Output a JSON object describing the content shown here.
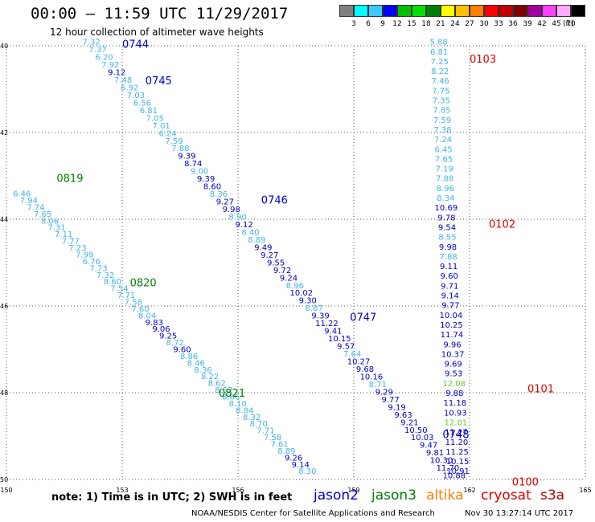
{
  "header": {
    "title": "00:00 – 11:59 UTC 11/29/2017",
    "subtitle": "12 hour collection of altimeter wave heights"
  },
  "legend": {
    "unit": "(ft)",
    "items": [
      {
        "color": "#808080",
        "label": "3"
      },
      {
        "color": "#00ffff",
        "label": "6"
      },
      {
        "color": "#3fc8ff",
        "label": "9"
      },
      {
        "color": "#0000ff",
        "label": "12"
      },
      {
        "color": "#00c000",
        "label": "15"
      },
      {
        "color": "#00e000",
        "label": "18"
      },
      {
        "color": "#008000",
        "label": "21"
      },
      {
        "color": "#ffff00",
        "label": "24"
      },
      {
        "color": "#ffc000",
        "label": "27"
      },
      {
        "color": "#ff8000",
        "label": "30"
      },
      {
        "color": "#ff0000",
        "label": "33"
      },
      {
        "color": "#c00000",
        "label": "36"
      },
      {
        "color": "#800000",
        "label": "39"
      },
      {
        "color": "#a000a0",
        "label": "42"
      },
      {
        "color": "#ff40ff",
        "label": "45"
      },
      {
        "color": "#ffaaff",
        "label": "70"
      },
      {
        "color": "#000000",
        "label": ""
      }
    ]
  },
  "axes": {
    "lat_labels": [
      "40",
      "42",
      "44",
      "46",
      "48",
      "50"
    ],
    "lon_labels": [
      "150",
      "153",
      "156",
      "159",
      "162",
      "165"
    ]
  },
  "colors": {
    "dark": "#0000c8",
    "light": "#3fb4e8",
    "green": "#008000",
    "red": "#e00000",
    "lime": "#66cc33"
  },
  "tracks": [
    {
      "id": "t1",
      "lon0": 152.2,
      "lat0": 39.9,
      "lon1": 161.6,
      "lat1": 49.9,
      "values": [
        "7.32",
        "7.37",
        "6.20",
        "7.92",
        "9.12",
        "7.48",
        "6.92",
        "7.03",
        "6.56",
        "6.81",
        "7.05",
        "7.01",
        "6.24",
        "7.59",
        "7.88",
        "9.39",
        "8.74",
        "9.00",
        "9.39",
        "8.60",
        "8.36",
        "9.27",
        "9.98",
        "8.90",
        "9.12",
        "8.40",
        "8.89",
        "9.49",
        "9.27",
        "9.55",
        "9.72",
        "9.24",
        "8.96",
        "10.02",
        "9.30",
        "8.87",
        "9.39",
        "11.22",
        "9.41",
        "10.15",
        "9.57",
        "7.64",
        "10.27",
        "9.68",
        "10.16",
        "8.71",
        "9.29",
        "9.77",
        "9.19",
        "9.63",
        "9.21",
        "10.50",
        "10.03",
        "9.47",
        "9.81",
        "10.30",
        "11.70",
        "10.88"
      ],
      "shades": [
        "L",
        "L",
        "L",
        "L",
        "D",
        "L",
        "L",
        "L",
        "L",
        "L",
        "L",
        "L",
        "L",
        "L",
        "L",
        "D",
        "D",
        "L",
        "D",
        "D",
        "L",
        "D",
        "D",
        "L",
        "D",
        "L",
        "L",
        "D",
        "D",
        "D",
        "D",
        "D",
        "L",
        "D",
        "D",
        "L",
        "D",
        "D",
        "D",
        "D",
        "D",
        "L",
        "D",
        "D",
        "D",
        "L",
        "D",
        "D",
        "D",
        "D",
        "D",
        "D",
        "D",
        "D",
        "D",
        "D",
        "D",
        "D"
      ]
    },
    {
      "id": "t2",
      "lon0": 150.4,
      "lat0": 43.4,
      "lon1": 157.8,
      "lat1": 49.8,
      "values": [
        "6.46",
        "7.94",
        "7.74",
        "7.65",
        "8.06",
        "7.31",
        "7.11",
        "7.77",
        "7.23",
        "7.99",
        "6.76",
        "7.73",
        "7.32",
        "8.60",
        "7.54",
        "7.71",
        "7.58",
        "7.60",
        "8.04",
        "9.83",
        "9.06",
        "9.25",
        "8.72",
        "9.60",
        "8.86",
        "8.46",
        "8.36",
        "8.22",
        "8.62",
        "8.52",
        "8.66",
        "8.10",
        "8.84",
        "8.32",
        "8.70",
        "7.71",
        "7.58",
        "7.61",
        "8.89",
        "9.26",
        "9.14",
        "8.30"
      ],
      "shades": [
        "L",
        "L",
        "L",
        "L",
        "L",
        "L",
        "L",
        "L",
        "L",
        "L",
        "L",
        "L",
        "L",
        "L",
        "L",
        "L",
        "L",
        "L",
        "L",
        "D",
        "D",
        "D",
        "L",
        "D",
        "L",
        "L",
        "L",
        "L",
        "L",
        "L",
        "L",
        "L",
        "L",
        "L",
        "L",
        "L",
        "L",
        "L",
        "L",
        "D",
        "D",
        "L"
      ]
    },
    {
      "id": "t3",
      "lon0": 161.2,
      "lat0": 39.9,
      "lon1": 161.7,
      "lat1": 49.8,
      "values": [
        "5.88",
        "6.81",
        "7.25",
        "8.22",
        "7.46",
        "7.75",
        "7.35",
        "7.85",
        "7.59",
        "7.38",
        "7.24",
        "6.45",
        "7.65",
        "7.19",
        "7.88",
        "8.96",
        "8.34",
        "10.69",
        "9.78",
        "9.54",
        "8.55",
        "9.98",
        "7.88",
        "9.11",
        "9.60",
        "9.71",
        "9.14",
        "9.77",
        "10.04",
        "10.25",
        "11.74",
        "9.96",
        "10.37",
        "9.69",
        "9.53",
        "12.08",
        "9.88",
        "11.18",
        "10.93",
        "12.01",
        "11.27",
        "11.20",
        "11.25",
        "10.15",
        "10.91"
      ],
      "shades": [
        "L",
        "L",
        "L",
        "L",
        "L",
        "L",
        "L",
        "L",
        "L",
        "L",
        "L",
        "L",
        "L",
        "L",
        "L",
        "L",
        "L",
        "D",
        "D",
        "D",
        "L",
        "D",
        "L",
        "D",
        "D",
        "D",
        "D",
        "D",
        "D",
        "D",
        "D",
        "D",
        "D",
        "D",
        "D",
        "G",
        "D",
        "D",
        "D",
        "G",
        "D",
        "D",
        "D",
        "D",
        "D"
      ]
    }
  ],
  "time_labels": [
    {
      "text": "0744",
      "color": "dark",
      "lon": 153.0,
      "lat": 39.95
    },
    {
      "text": "0745",
      "color": "dark",
      "lon": 153.6,
      "lat": 40.8
    },
    {
      "text": "0746",
      "color": "dark",
      "lon": 156.6,
      "lat": 43.55
    },
    {
      "text": "0747",
      "color": "dark",
      "lon": 158.9,
      "lat": 46.25
    },
    {
      "text": "0748",
      "color": "dark",
      "lon": 161.3,
      "lat": 48.95
    },
    {
      "text": "0819",
      "color": "green",
      "lon": 151.3,
      "lat": 43.05
    },
    {
      "text": "0820",
      "color": "green",
      "lon": 153.2,
      "lat": 45.45
    },
    {
      "text": "0821",
      "color": "green",
      "lon": 155.5,
      "lat": 48.0
    },
    {
      "text": "0103",
      "color": "red",
      "lon": 162.0,
      "lat": 40.3
    },
    {
      "text": "0102",
      "color": "red",
      "lon": 162.5,
      "lat": 44.1
    },
    {
      "text": "0101",
      "color": "red",
      "lon": 163.5,
      "lat": 47.9
    },
    {
      "text": "0100",
      "color": "red",
      "lon": 163.1,
      "lat": 50.05
    }
  ],
  "note": "note:  1) Time is in UTC;  2) SWH is in feet",
  "satellites": [
    {
      "name": "jason2",
      "color": "#0000c8"
    },
    {
      "name": "jason3",
      "color": "#008000"
    },
    {
      "name": "altika",
      "color": "#ff8000"
    },
    {
      "name": "cryosat",
      "color": "#e00000"
    },
    {
      "name": "s3a",
      "color": "#c00000"
    }
  ],
  "footer": {
    "source": "NOAA/NESDIS Center for Satellite Applications and Research",
    "timestamp": "Nov 30 13:27:14 UTC 2017"
  }
}
